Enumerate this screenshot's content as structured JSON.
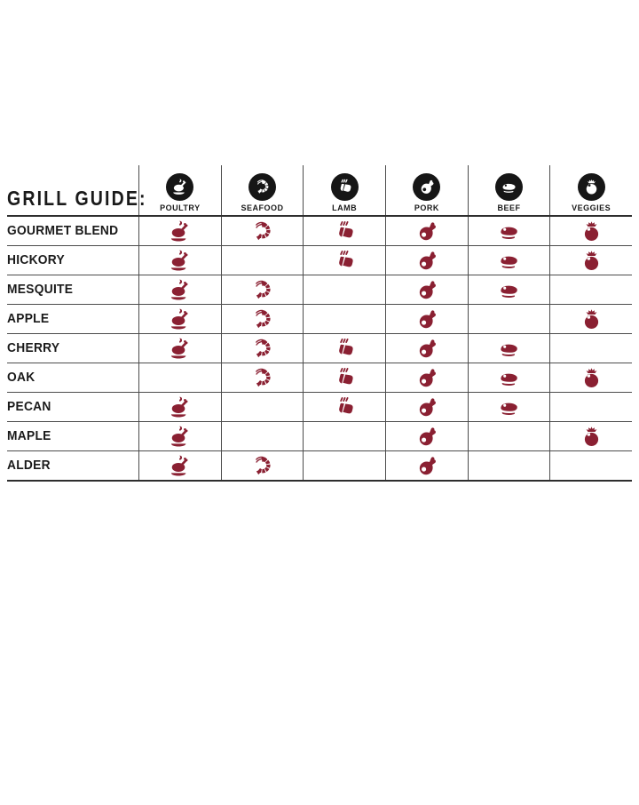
{
  "title": "GRILL GUIDE:",
  "colors": {
    "accent": "#8A2032",
    "circle": "#161616",
    "line": "#4C4C4C",
    "strong_line": "#2E2E2E",
    "text": "#1A1A1A",
    "background": "#FFFFFF"
  },
  "columns": [
    {
      "id": "poultry",
      "label": "POULTRY",
      "icon": "poultry-icon"
    },
    {
      "id": "seafood",
      "label": "SEAFOOD",
      "icon": "shrimp-icon"
    },
    {
      "id": "lamb",
      "label": "LAMB",
      "icon": "lamb-icon"
    },
    {
      "id": "pork",
      "label": "PORK",
      "icon": "ham-icon"
    },
    {
      "id": "beef",
      "label": "BEEF",
      "icon": "steak-icon"
    },
    {
      "id": "veggies",
      "label": "VEGGIES",
      "icon": "tomato-icon"
    }
  ],
  "rows": [
    {
      "label": "GOURMET BLEND",
      "cells": {
        "poultry": true,
        "seafood": true,
        "lamb": true,
        "pork": true,
        "beef": true,
        "veggies": true
      }
    },
    {
      "label": "HICKORY",
      "cells": {
        "poultry": true,
        "seafood": false,
        "lamb": true,
        "pork": true,
        "beef": true,
        "veggies": true
      }
    },
    {
      "label": "MESQUITE",
      "cells": {
        "poultry": true,
        "seafood": true,
        "lamb": false,
        "pork": true,
        "beef": true,
        "veggies": false
      }
    },
    {
      "label": "APPLE",
      "cells": {
        "poultry": true,
        "seafood": true,
        "lamb": false,
        "pork": true,
        "beef": false,
        "veggies": true
      }
    },
    {
      "label": "CHERRY",
      "cells": {
        "poultry": true,
        "seafood": true,
        "lamb": true,
        "pork": true,
        "beef": true,
        "veggies": false
      }
    },
    {
      "label": "OAK",
      "cells": {
        "poultry": false,
        "seafood": true,
        "lamb": true,
        "pork": true,
        "beef": true,
        "veggies": true
      }
    },
    {
      "label": "PECAN",
      "cells": {
        "poultry": true,
        "seafood": false,
        "lamb": true,
        "pork": true,
        "beef": true,
        "veggies": false
      }
    },
    {
      "label": "MAPLE",
      "cells": {
        "poultry": true,
        "seafood": false,
        "lamb": false,
        "pork": true,
        "beef": false,
        "veggies": true
      }
    },
    {
      "label": "ALDER",
      "cells": {
        "poultry": true,
        "seafood": true,
        "lamb": false,
        "pork": true,
        "beef": false,
        "veggies": false
      }
    }
  ],
  "chart_data": {
    "type": "table",
    "title": "GRILL GUIDE:",
    "columns": [
      "POULTRY",
      "SEAFOOD",
      "LAMB",
      "PORK",
      "BEEF",
      "VEGGIES"
    ],
    "rows": [
      "GOURMET BLEND",
      "HICKORY",
      "MESQUITE",
      "APPLE",
      "CHERRY",
      "OAK",
      "PECAN",
      "MAPLE",
      "ALDER"
    ],
    "matrix": [
      [
        1,
        1,
        1,
        1,
        1,
        1
      ],
      [
        1,
        0,
        1,
        1,
        1,
        1
      ],
      [
        1,
        1,
        0,
        1,
        1,
        0
      ],
      [
        1,
        1,
        0,
        1,
        0,
        1
      ],
      [
        1,
        1,
        1,
        1,
        1,
        0
      ],
      [
        0,
        1,
        1,
        1,
        1,
        1
      ],
      [
        1,
        0,
        1,
        1,
        1,
        0
      ],
      [
        1,
        0,
        0,
        1,
        0,
        1
      ],
      [
        1,
        1,
        0,
        1,
        0,
        0
      ]
    ]
  }
}
